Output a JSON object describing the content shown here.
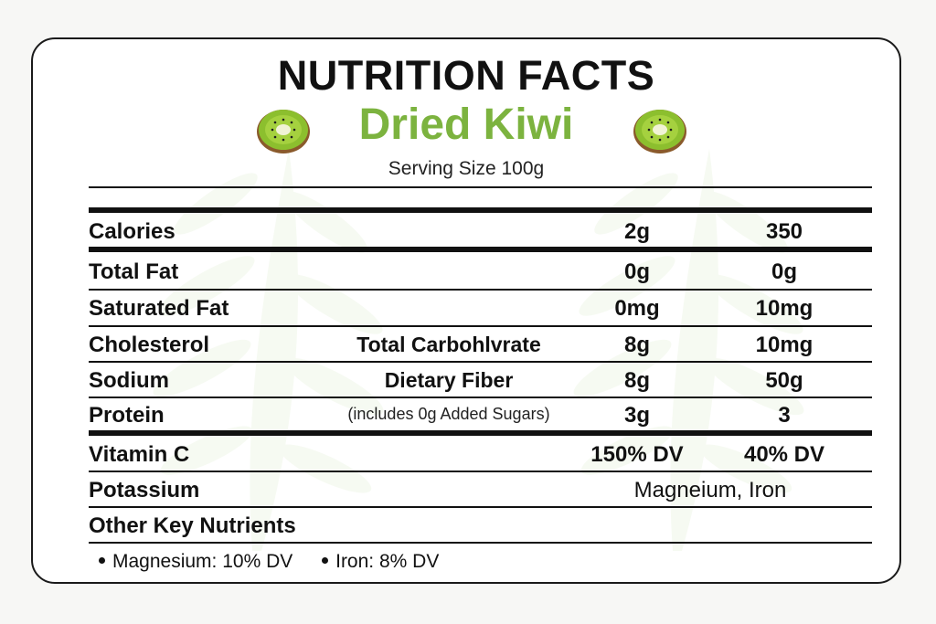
{
  "label": {
    "title": "NUTRITION FACTS",
    "product": "Dried Kiwi",
    "serving_size": "Serving Size 100g"
  },
  "colors": {
    "product_green": "#7cb33f",
    "kiwi_flesh": "#8cbf2e",
    "kiwi_skin": "#8a5a2b",
    "border": "#1a1a1a"
  },
  "icons": [
    "kiwi-slice-icon",
    "kiwi-slice-icon"
  ],
  "rows": [
    {
      "label": "Calories",
      "middle": "",
      "col1": "2g",
      "col2": "350"
    },
    {
      "label": "Total Fat",
      "middle": "",
      "col1": "0g",
      "col2": "0g"
    },
    {
      "label": "Saturated Fat",
      "middle": "",
      "col1": "0mg",
      "col2": "10mg"
    },
    {
      "label": "Cholesterol",
      "middle": "Total Carbohlvrate",
      "col1": "8g",
      "col2": "10mg"
    },
    {
      "label": "Sodium",
      "middle": "Dietary Fiber",
      "col1": "8g",
      "col2": "50g"
    },
    {
      "label": "Protein",
      "middle": "(includes 0g Added Sugars)",
      "col1": "3g",
      "col2": "3"
    },
    {
      "label": "Vitamin C",
      "middle": "",
      "col1": "150% DV",
      "col2": "40% DV"
    },
    {
      "label": "Potassium",
      "middle": "",
      "span": "Magneium, Iron"
    },
    {
      "label": "Other Key Nutrients",
      "middle": ""
    }
  ],
  "key_nutrients": [
    "Magnesium: 10% DV",
    "Iron: 8% DV"
  ]
}
